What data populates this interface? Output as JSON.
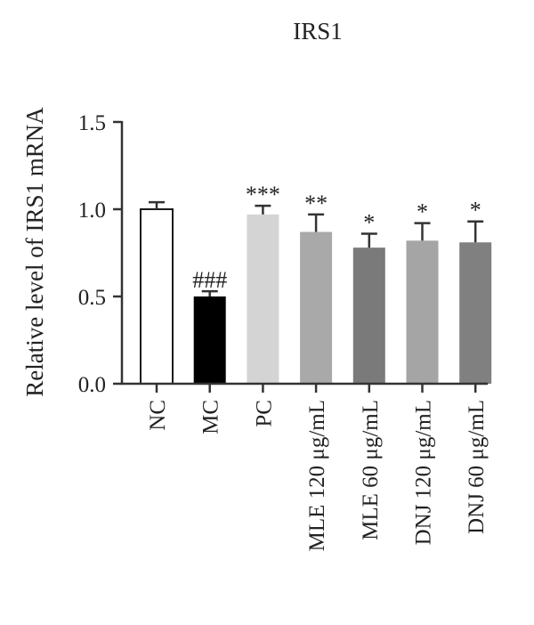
{
  "chart_data": {
    "type": "bar",
    "title": "IRS1",
    "xlabel": "",
    "ylabel": "Relative level of IRS1 mRNA",
    "ylim": [
      0,
      1.5
    ],
    "yticks": [
      "0.0",
      "0.5",
      "1.0",
      "1.5"
    ],
    "ytick_values": [
      0,
      0.5,
      1.0,
      1.5
    ],
    "grid": false,
    "categories": [
      "NC",
      "MC",
      "PC",
      "MLE 120 μg/mL",
      "MLE 60 μg/mL",
      "DNJ 120 μg/mL",
      "DNJ 60 μg/mL"
    ],
    "values": [
      1.0,
      0.5,
      0.97,
      0.87,
      0.78,
      0.82,
      0.81
    ],
    "errors": [
      0.04,
      0.03,
      0.05,
      0.1,
      0.08,
      0.1,
      0.12
    ],
    "significance": [
      "",
      "###",
      "***",
      "**",
      "*",
      "*",
      "*"
    ],
    "colors": [
      "#ffffff",
      "#000000",
      "#d4d4d4",
      "#a9a9a9",
      "#7a7a7a",
      "#a5a5a5",
      "#808080"
    ]
  }
}
